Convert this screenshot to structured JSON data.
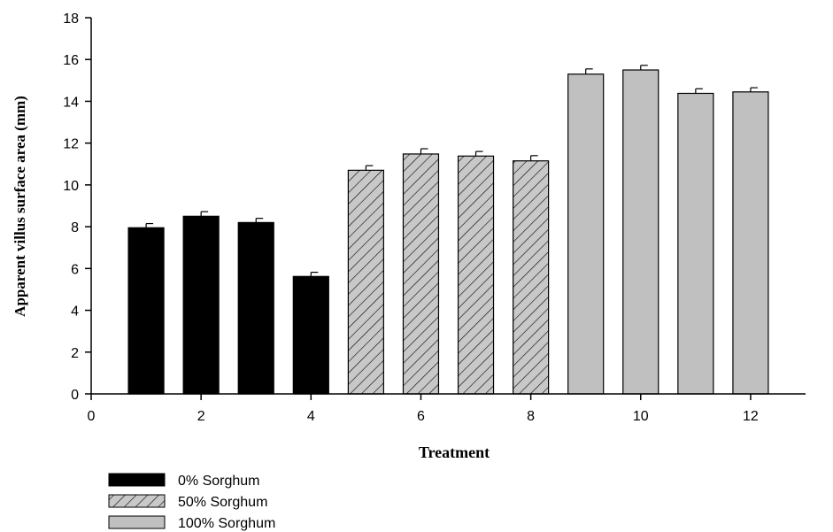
{
  "chart_data": {
    "type": "bar",
    "xlabel": "Treatment",
    "ylabel": "Apparent villus surface area (mm)",
    "xlim": [
      0,
      13
    ],
    "ylim": [
      0,
      18
    ],
    "x_ticks": [
      0,
      2,
      4,
      6,
      8,
      10,
      12
    ],
    "y_ticks": [
      0,
      2,
      4,
      6,
      8,
      10,
      12,
      14,
      16,
      18
    ],
    "grid": false,
    "legend_position": "bottom-left",
    "series": [
      {
        "name": "0% Sorghum",
        "fill": "#000000",
        "pattern": "solid",
        "x": [
          1,
          2,
          3,
          4
        ],
        "values": [
          7.95,
          8.5,
          8.2,
          5.62
        ],
        "errors": [
          0.2,
          0.22,
          0.2,
          0.2
        ]
      },
      {
        "name": "50% Sorghum",
        "fill": "#c8c8c8",
        "pattern": "hatch",
        "x": [
          5,
          6,
          7,
          8
        ],
        "values": [
          10.7,
          11.48,
          11.38,
          11.15
        ],
        "errors": [
          0.22,
          0.25,
          0.22,
          0.25
        ]
      },
      {
        "name": "100% Sorghum",
        "fill": "#c0c0c0",
        "pattern": "solid",
        "x": [
          9,
          10,
          11,
          12
        ],
        "values": [
          15.3,
          15.5,
          14.38,
          14.45
        ],
        "errors": [
          0.25,
          0.22,
          0.22,
          0.2
        ]
      }
    ]
  }
}
